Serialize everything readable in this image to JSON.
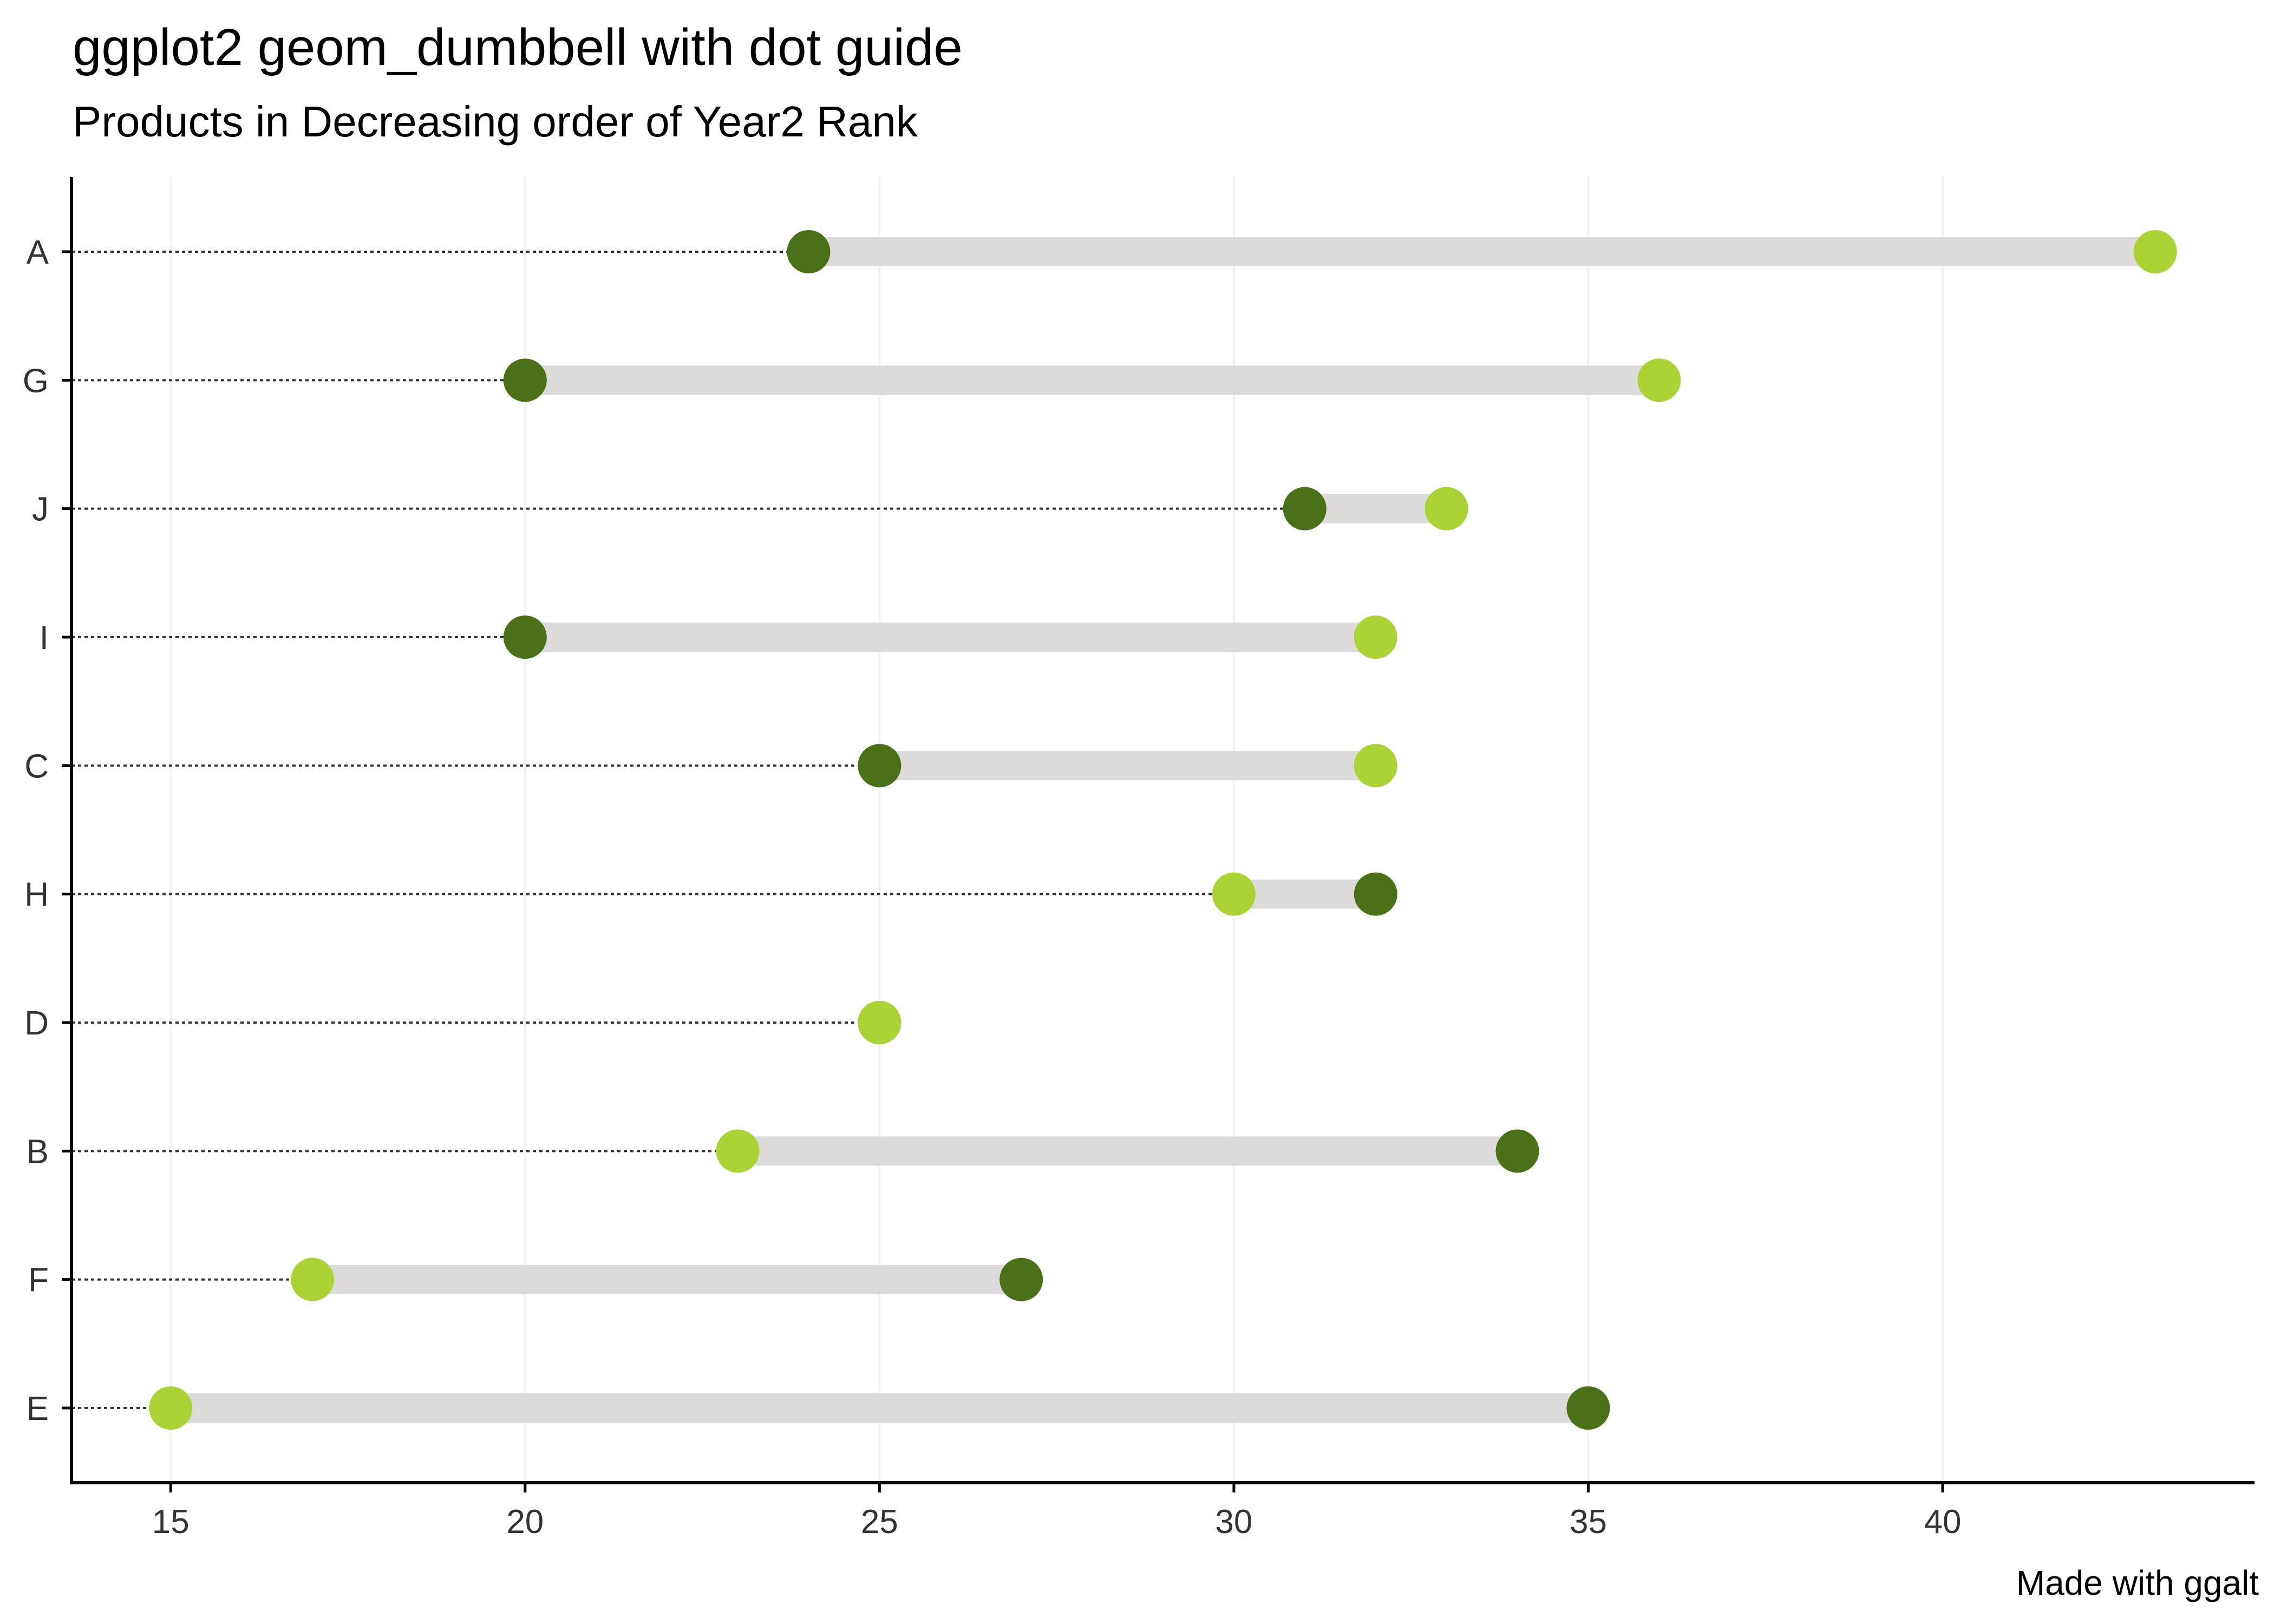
{
  "chart_data": {
    "type": "dumbbell",
    "title": "ggplot2 geom_dumbbell with dot guide",
    "subtitle": "Products in Decreasing order of Year2 Rank",
    "caption": "Made with ggalt",
    "xlabel": "",
    "ylabel": "",
    "xlim": [
      13.6,
      44.4
    ],
    "x_ticks": [
      15,
      20,
      25,
      30,
      35,
      40
    ],
    "x_tick_labels": [
      "15",
      "20",
      "25",
      "30",
      "35",
      "40"
    ],
    "grid": "vertical minor, faint",
    "legend": "none",
    "categories": [
      "A",
      "G",
      "J",
      "I",
      "C",
      "H",
      "D",
      "B",
      "F",
      "E"
    ],
    "series": [
      {
        "values": [
          24,
          20,
          31,
          20,
          25,
          32,
          25,
          34,
          27,
          35
        ]
      },
      {
        "values": [
          43,
          36,
          33,
          32,
          32,
          30,
          25,
          23,
          17,
          15
        ]
      }
    ],
    "colors": {
      "series1": "#4a7118",
      "series2": "#abd335",
      "segment": "#dcdbd9",
      "dot_guide": "#333333",
      "axis": "#000000",
      "grid": "#f2f2f2"
    }
  }
}
